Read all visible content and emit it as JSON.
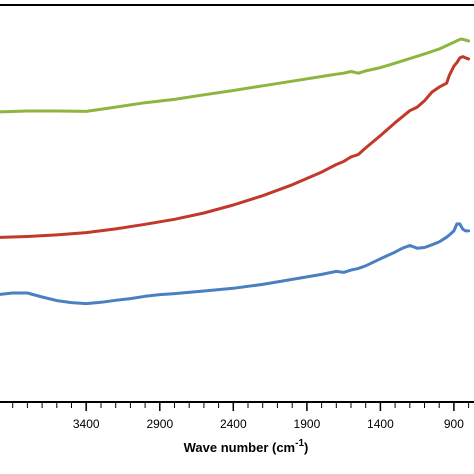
{
  "chart_data": {
    "type": "line",
    "title": "",
    "xlabel_main": "Wave number (cm",
    "xlabel_sup": "-1",
    "xlabel_close": ")",
    "xlim": [
      4000,
      750
    ],
    "x_reversed": true,
    "x_ticks": [
      3400,
      2900,
      2400,
      1900,
      1400,
      900
    ],
    "ylim": [
      0,
      1
    ],
    "y_ticks_shown": false,
    "grid": false,
    "legend": "none",
    "series": [
      {
        "color": "#8db53f",
        "x": [
          4000,
          3800,
          3600,
          3400,
          3200,
          3000,
          2800,
          2600,
          2400,
          2200,
          2000,
          1800,
          1700,
          1650,
          1600,
          1550,
          1500,
          1400,
          1300,
          1200,
          1100,
          1000,
          950,
          900,
          870,
          850,
          830,
          800
        ],
        "y": [
          0.783,
          0.786,
          0.786,
          0.785,
          0.798,
          0.811,
          0.821,
          0.835,
          0.848,
          0.862,
          0.876,
          0.89,
          0.897,
          0.9,
          0.905,
          0.9,
          0.907,
          0.917,
          0.93,
          0.944,
          0.958,
          0.973,
          0.983,
          0.993,
          1.0,
          1.003,
          1.001,
          0.997
        ]
      },
      {
        "color": "#c0392b",
        "x": [
          4000,
          3800,
          3600,
          3400,
          3200,
          3000,
          2800,
          2600,
          2400,
          2200,
          2000,
          1800,
          1700,
          1650,
          1600,
          1550,
          1500,
          1400,
          1300,
          1200,
          1150,
          1100,
          1050,
          1000,
          950,
          930,
          900,
          880,
          860,
          840,
          820,
          800
        ],
        "y": [
          0.405,
          0.408,
          0.413,
          0.42,
          0.431,
          0.445,
          0.46,
          0.479,
          0.503,
          0.531,
          0.564,
          0.602,
          0.625,
          0.634,
          0.648,
          0.655,
          0.675,
          0.712,
          0.751,
          0.787,
          0.798,
          0.817,
          0.843,
          0.858,
          0.87,
          0.895,
          0.921,
          0.932,
          0.946,
          0.95,
          0.946,
          0.943
        ]
      },
      {
        "color": "#4a7fc1",
        "x": [
          4000,
          3900,
          3800,
          3700,
          3600,
          3500,
          3400,
          3300,
          3200,
          3100,
          3000,
          2900,
          2800,
          2600,
          2400,
          2200,
          2000,
          1800,
          1700,
          1650,
          1600,
          1550,
          1500,
          1400,
          1300,
          1250,
          1200,
          1150,
          1100,
          1050,
          1000,
          950,
          930,
          900,
          880,
          860,
          840,
          820,
          800
        ],
        "y": [
          0.233,
          0.238,
          0.238,
          0.226,
          0.215,
          0.209,
          0.206,
          0.21,
          0.216,
          0.221,
          0.228,
          0.233,
          0.236,
          0.244,
          0.252,
          0.264,
          0.279,
          0.294,
          0.303,
          0.3,
          0.307,
          0.312,
          0.32,
          0.341,
          0.361,
          0.373,
          0.381,
          0.373,
          0.375,
          0.383,
          0.392,
          0.406,
          0.413,
          0.425,
          0.446,
          0.446,
          0.43,
          0.425,
          0.425
        ]
      }
    ]
  }
}
